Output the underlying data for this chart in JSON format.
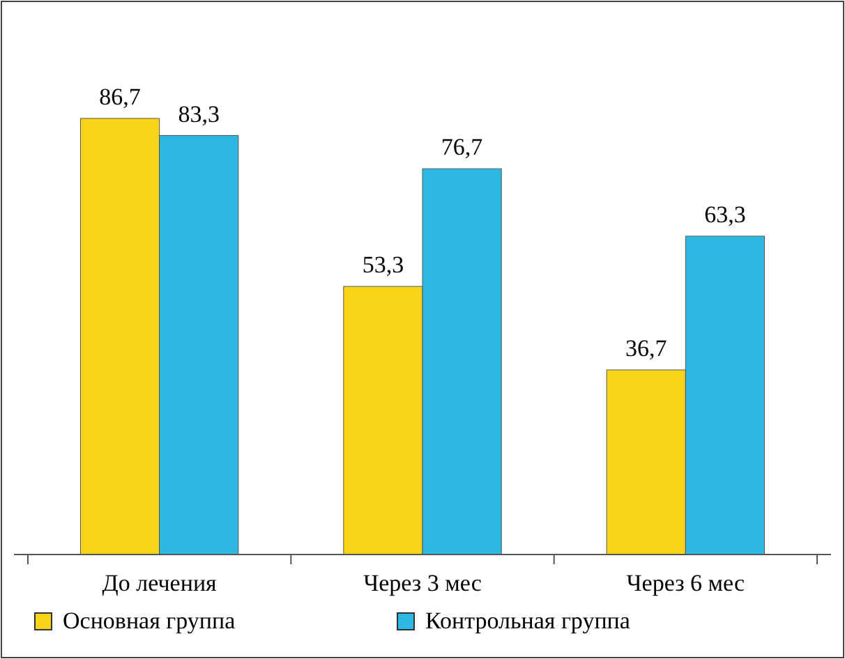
{
  "chart_data": {
    "type": "bar",
    "categories": [
      "До лечения",
      "Через 3 мес",
      "Через 6 мес"
    ],
    "series": [
      {
        "name": "Основная группа",
        "color": "#f7d417",
        "values": [
          86.7,
          53.3,
          36.7
        ],
        "value_labels": [
          "86,7",
          "53,3",
          "36,7"
        ]
      },
      {
        "name": "Контрольная группа",
        "color": "#2cb8e2",
        "values": [
          83.3,
          76.7,
          63.3
        ],
        "value_labels": [
          "83,3",
          "76,7",
          "63,3"
        ]
      }
    ],
    "legend": "bottom"
  }
}
